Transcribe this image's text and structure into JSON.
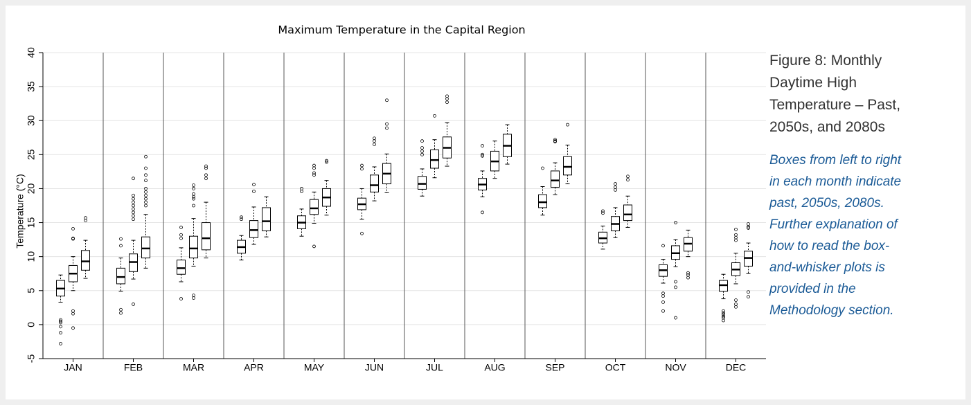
{
  "chart_data": {
    "type": "box",
    "title": "Maximum Temperature in the Capital Region",
    "ylabel": "Temperature (°C)",
    "categories": [
      "JAN",
      "FEB",
      "MAR",
      "APR",
      "MAY",
      "JUN",
      "JUL",
      "AUG",
      "SEP",
      "OCT",
      "NOV",
      "DEC"
    ],
    "ylim": [
      -5,
      40
    ],
    "yticks": [
      -5,
      0,
      5,
      10,
      15,
      20,
      25,
      30,
      35,
      40
    ],
    "grid": true,
    "color": "#000000",
    "series": [
      {
        "values": [
          {
            "low": 3.3,
            "q1": 4.2,
            "median": 5.3,
            "q3": 6.5,
            "high": 7.3,
            "outliers": [
              0.7,
              0.5,
              0.3,
              -0.3,
              -1.2,
              -2.8
            ]
          },
          {
            "low": 4.9,
            "q1": 6,
            "median": 7,
            "q3": 8.3,
            "high": 9.8,
            "outliers": [
              12.6,
              11.6,
              2.2,
              1.7
            ]
          },
          {
            "low": 6.3,
            "q1": 7.4,
            "median": 8.3,
            "q3": 9.5,
            "high": 11.3,
            "outliers": [
              14.3,
              13.2,
              12.7,
              3.8
            ]
          },
          {
            "low": 9.5,
            "q1": 10.5,
            "median": 11.4,
            "q3": 12.4,
            "high": 13.1,
            "outliers": [
              15.8,
              15.5
            ]
          },
          {
            "low": 13,
            "q1": 14.1,
            "median": 15,
            "q3": 16,
            "high": 17,
            "outliers": [
              20,
              19.6
            ]
          },
          {
            "low": 15.5,
            "q1": 16.9,
            "median": 17.7,
            "q3": 18.6,
            "high": 20,
            "outliers": [
              23.4,
              22.9,
              13.4
            ]
          },
          {
            "low": 18.9,
            "q1": 19.9,
            "median": 20.7,
            "q3": 21.8,
            "high": 22.9,
            "outliers": [
              27,
              26,
              25.5,
              25
            ]
          },
          {
            "low": 18.8,
            "q1": 19.8,
            "median": 20.6,
            "q3": 21.5,
            "high": 22.6,
            "outliers": [
              26.3,
              25,
              24.8,
              16.5
            ]
          },
          {
            "low": 16.1,
            "q1": 17.2,
            "median": 18,
            "q3": 19.1,
            "high": 20.3,
            "outliers": [
              23
            ]
          },
          {
            "low": 11.1,
            "q1": 12,
            "median": 12.7,
            "q3": 13.6,
            "high": 14.5,
            "outliers": [
              16.7,
              16.4
            ]
          },
          {
            "low": 6.1,
            "q1": 7.1,
            "median": 8,
            "q3": 8.8,
            "high": 9.6,
            "outliers": [
              11.6,
              4.6,
              4.2,
              3.3,
              2
            ]
          },
          {
            "low": 3.8,
            "q1": 4.9,
            "median": 5.8,
            "q3": 6.5,
            "high": 7.4,
            "outliers": [
              2,
              1.7,
              1.5,
              1.2,
              1,
              0.6
            ]
          }
        ]
      },
      {
        "values": [
          {
            "low": 5,
            "q1": 6.3,
            "median": 7.5,
            "q3": 8.7,
            "high": 10,
            "outliers": [
              14.1,
              12.7,
              12.6,
              2,
              1.6,
              -0.5
            ]
          },
          {
            "low": 6.7,
            "q1": 7.8,
            "median": 9.2,
            "q3": 10.4,
            "high": 12.4,
            "outliers": [
              21.5,
              19,
              18.5,
              18,
              17.5,
              17,
              16.5,
              16,
              15.5,
              3
            ]
          },
          {
            "low": 8.6,
            "q1": 9.8,
            "median": 11.2,
            "q3": 13,
            "high": 15.6,
            "outliers": [
              20.5,
              20,
              19.2,
              18.8,
              18.5,
              17.5,
              4.3,
              3.9
            ]
          },
          {
            "low": 11.8,
            "q1": 12.8,
            "median": 13.9,
            "q3": 15.3,
            "high": 17.3,
            "outliers": [
              20.6,
              19.6
            ]
          },
          {
            "low": 14.9,
            "q1": 16.2,
            "median": 17.1,
            "q3": 18.4,
            "high": 19.5,
            "outliers": [
              23.4,
              23,
              22.3,
              22,
              11.5
            ]
          },
          {
            "low": 18.2,
            "q1": 19.5,
            "median": 20.5,
            "q3": 22,
            "high": 23.2,
            "outliers": [
              27.4,
              27,
              26.5
            ]
          },
          {
            "low": 21.6,
            "q1": 23,
            "median": 24.2,
            "q3": 25.7,
            "high": 27.2,
            "outliers": [
              30.7
            ]
          },
          {
            "low": 21.5,
            "q1": 22.6,
            "median": 24,
            "q3": 25.5,
            "high": 27,
            "outliers": []
          },
          {
            "low": 19.1,
            "q1": 20.2,
            "median": 21.2,
            "q3": 22.6,
            "high": 23.8,
            "outliers": [
              27.2,
              27,
              26.9
            ]
          },
          {
            "low": 12.8,
            "q1": 13.8,
            "median": 14.8,
            "q3": 15.9,
            "high": 17.2,
            "outliers": [
              20.7,
              20.2,
              19.8
            ]
          },
          {
            "low": 8.5,
            "q1": 9.6,
            "median": 10.5,
            "q3": 11.6,
            "high": 12.5,
            "outliers": [
              15,
              6.3,
              5.5,
              1
            ]
          },
          {
            "low": 6,
            "q1": 7.2,
            "median": 8.1,
            "q3": 9.1,
            "high": 10.5,
            "outliers": [
              14,
              13.2,
              12.8,
              12.4,
              3.6,
              3,
              2.6
            ]
          }
        ]
      },
      {
        "values": [
          {
            "low": 6.8,
            "q1": 8,
            "median": 9.3,
            "q3": 10.9,
            "high": 12.4,
            "outliers": [
              15.3,
              15.7
            ]
          },
          {
            "low": 8.3,
            "q1": 9.8,
            "median": 11.2,
            "q3": 12.9,
            "high": 16.2,
            "outliers": [
              24.7,
              23,
              22,
              21.2,
              20,
              19.5,
              19,
              18.5,
              18,
              17.5
            ]
          },
          {
            "low": 9.8,
            "q1": 11,
            "median": 12.7,
            "q3": 15,
            "high": 18,
            "outliers": [
              23.3,
              23,
              22,
              21.5
            ]
          },
          {
            "low": 12.9,
            "q1": 13.8,
            "median": 15.2,
            "q3": 17.2,
            "high": 18.8,
            "outliers": []
          },
          {
            "low": 16.1,
            "q1": 17.4,
            "median": 18.7,
            "q3": 20,
            "high": 21.2,
            "outliers": [
              24.1,
              23.9
            ]
          },
          {
            "low": 19.4,
            "q1": 20.7,
            "median": 22.2,
            "q3": 23.7,
            "high": 25.1,
            "outliers": [
              33,
              29.5,
              28.9
            ]
          },
          {
            "low": 23.3,
            "q1": 24.5,
            "median": 26,
            "q3": 27.6,
            "high": 29.7,
            "outliers": [
              33.6,
              33.2,
              32.7
            ]
          },
          {
            "low": 23.6,
            "q1": 24.7,
            "median": 26.3,
            "q3": 28,
            "high": 29.4,
            "outliers": []
          },
          {
            "low": 20.7,
            "q1": 22,
            "median": 23.2,
            "q3": 24.7,
            "high": 26.4,
            "outliers": [
              29.4
            ]
          },
          {
            "low": 14.3,
            "q1": 15.3,
            "median": 16.2,
            "q3": 17.6,
            "high": 18.9,
            "outliers": [
              21.8,
              21.3
            ]
          },
          {
            "low": 10,
            "q1": 10.8,
            "median": 11.9,
            "q3": 12.8,
            "high": 13.9,
            "outliers": [
              7.6,
              7.3,
              6.9
            ]
          },
          {
            "low": 7.5,
            "q1": 8.6,
            "median": 9.8,
            "q3": 10.8,
            "high": 12,
            "outliers": [
              14.8,
              14.4,
              14.2,
              4.8,
              4.1
            ]
          }
        ]
      }
    ]
  },
  "caption": {
    "title": "Figure 8: Monthly Daytime High Temperature – Past, 2050s, and 2080s",
    "text": "Boxes from left to right in each month indicate past, 2050s, 2080s. Further explanation of how to read the box-and-whisker plots is provided in the Methodology section."
  }
}
